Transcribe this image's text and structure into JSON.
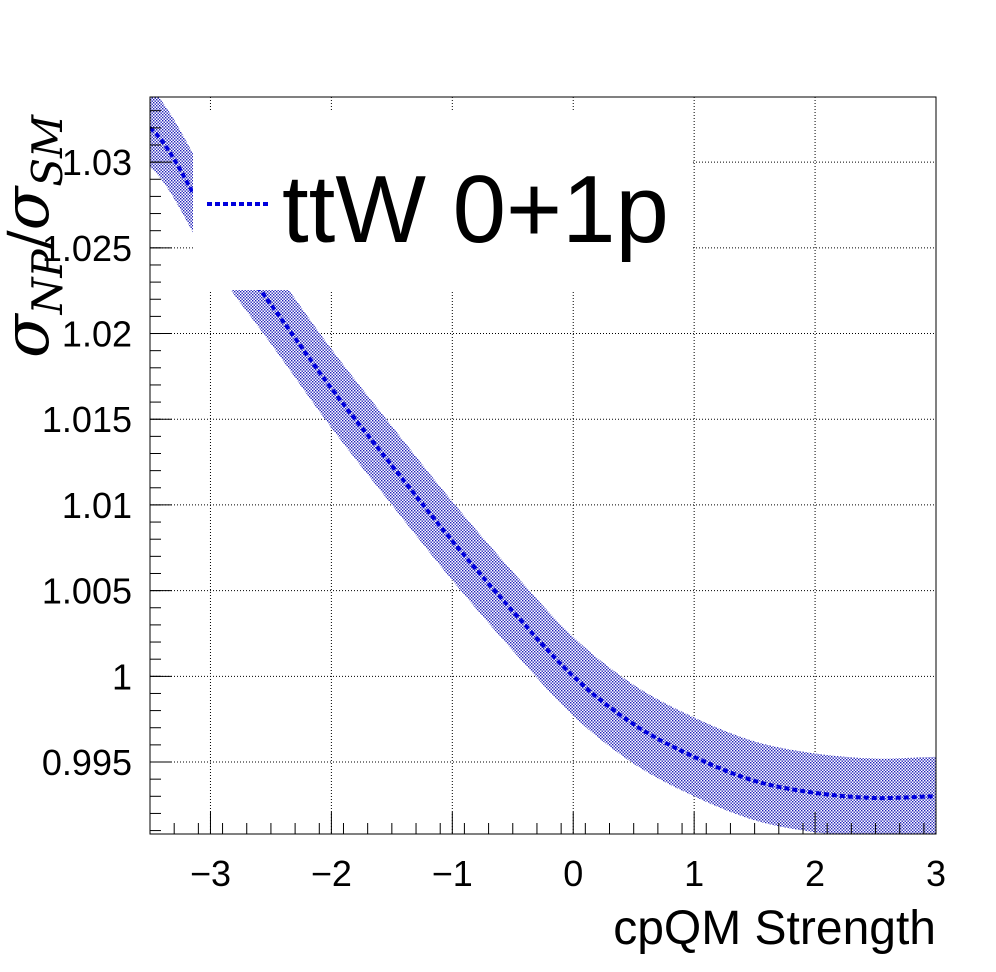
{
  "chart_data": {
    "type": "line",
    "title": "",
    "xlabel": "cpQM Strength",
    "ylabel": {
      "sigma": "σ",
      "sub_np": "NP",
      "slash": "/",
      "sub_sm": "SM"
    },
    "xlim": [
      -3.5,
      3.0
    ],
    "ylim": [
      0.9908,
      1.0338
    ],
    "grid": true,
    "legend": {
      "placement": "top-left",
      "entries": [
        "ttW 0+1p"
      ]
    },
    "x_ticks": [
      {
        "value": -3,
        "label": "−3"
      },
      {
        "value": -2,
        "label": "−2"
      },
      {
        "value": -1,
        "label": "−1"
      },
      {
        "value": 0,
        "label": "0"
      },
      {
        "value": 1,
        "label": "1"
      },
      {
        "value": 2,
        "label": "2"
      },
      {
        "value": 3,
        "label": "3"
      }
    ],
    "y_ticks": [
      {
        "value": 0.995,
        "label": "0.995"
      },
      {
        "value": 1.0,
        "label": "1"
      },
      {
        "value": 1.005,
        "label": "1.005"
      },
      {
        "value": 1.01,
        "label": "1.01"
      },
      {
        "value": 1.015,
        "label": "1.015"
      },
      {
        "value": 1.02,
        "label": "1.02"
      },
      {
        "value": 1.025,
        "label": "1.025"
      },
      {
        "value": 1.03,
        "label": "1.03"
      }
    ],
    "series": [
      {
        "name": "ttW 0+1p",
        "color": "#0000dd",
        "band_color": "#1f1fb8",
        "band_halfwidth": 0.0023,
        "x": [
          -3.5,
          -3.0,
          -2.5,
          -2.0,
          -1.5,
          -1.0,
          -0.5,
          0.0,
          0.5,
          1.0,
          1.5,
          2.0,
          2.5,
          3.0
        ],
        "values": [
          1.032,
          1.0265,
          1.0217,
          1.0168,
          1.0123,
          1.0079,
          1.0038,
          1.0,
          0.9972,
          0.9953,
          0.9939,
          0.9932,
          0.9929,
          0.993
        ]
      }
    ]
  }
}
